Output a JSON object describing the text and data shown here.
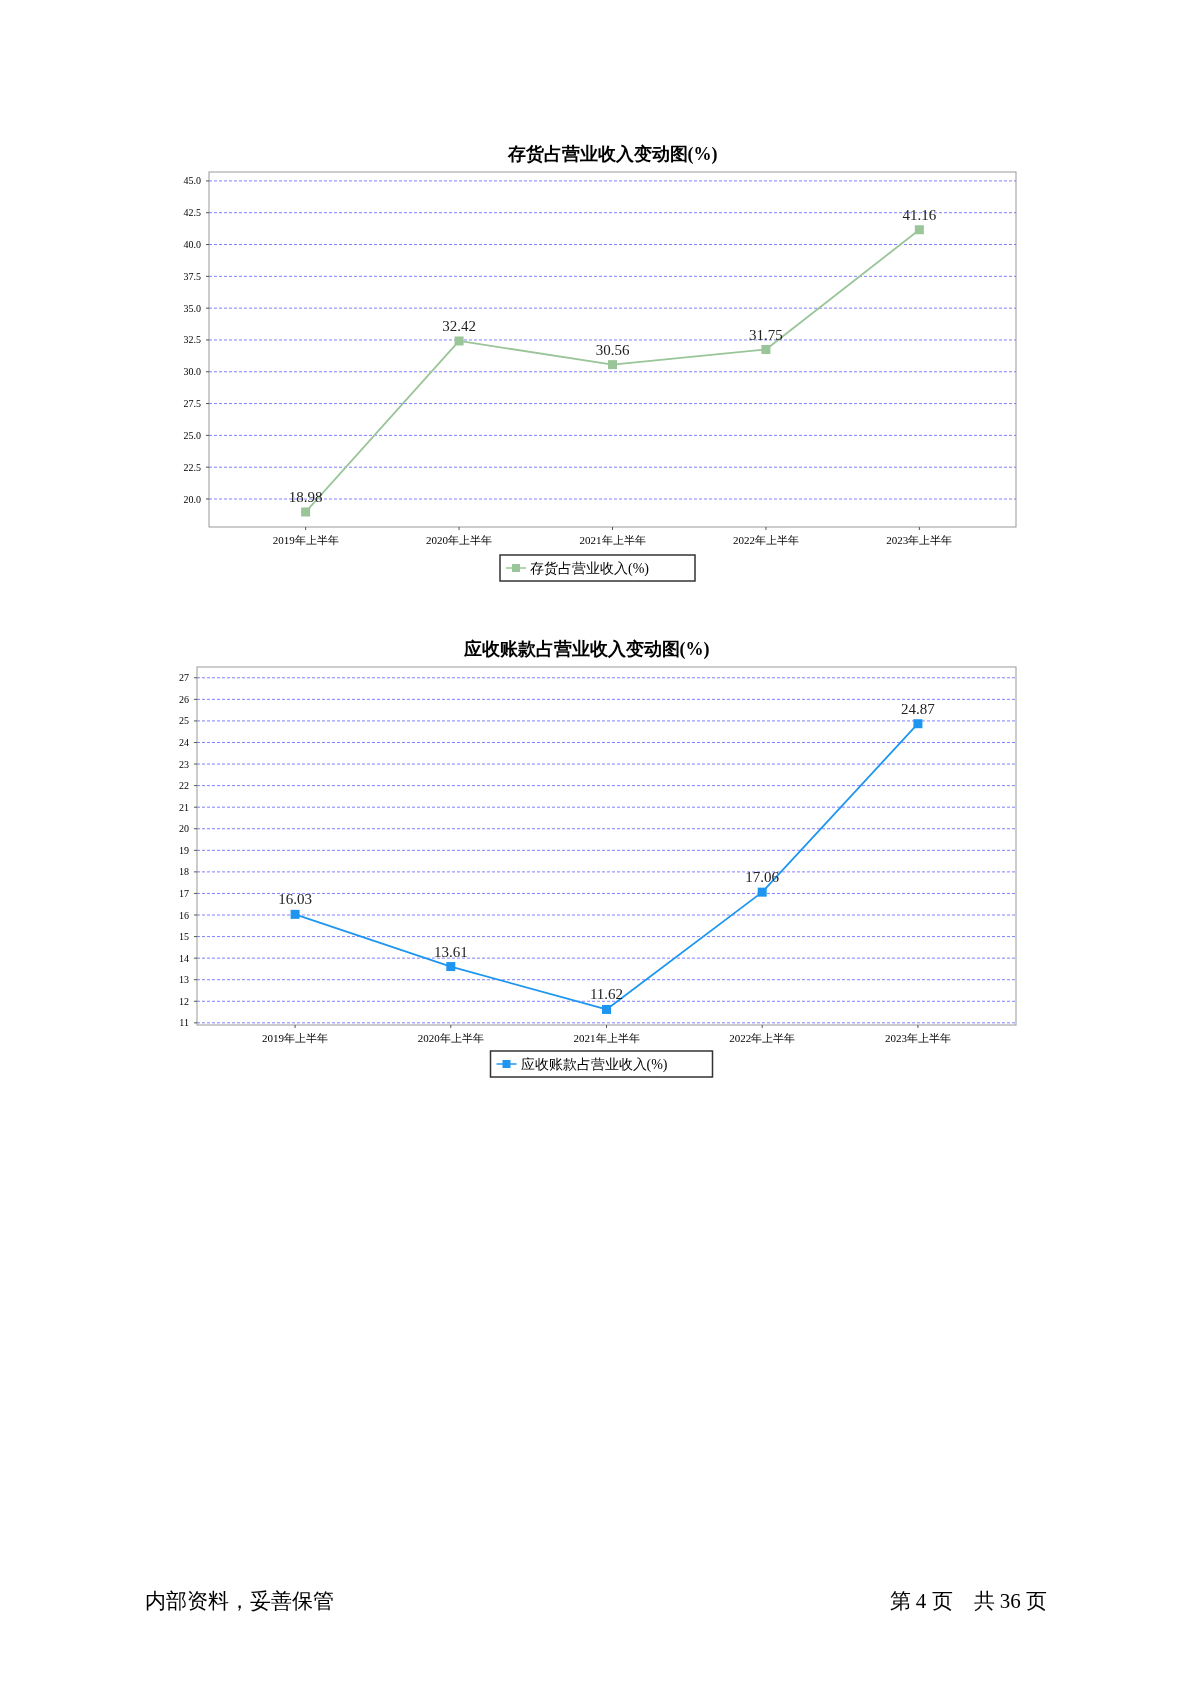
{
  "chart_data": [
    {
      "type": "line",
      "title": "存货占营业收入变动图(%)",
      "categories": [
        "2019年上半年",
        "2020年上半年",
        "2021年上半年",
        "2022年上半年",
        "2023年上半年"
      ],
      "series": [
        {
          "name": "存货占营业收入(%)",
          "color": "#99c599",
          "values": [
            18.98,
            32.42,
            30.56,
            31.75,
            41.16
          ]
        }
      ],
      "ylim": [
        17.8,
        45.7
      ],
      "yticks": [
        {
          "value": 20,
          "label": "20.0"
        },
        {
          "value": 22.5,
          "label": "22.5"
        },
        {
          "value": 25,
          "label": "25.0"
        },
        {
          "value": 27.5,
          "label": "27.5"
        },
        {
          "value": 30,
          "label": "30.0"
        },
        {
          "value": 32.5,
          "label": "32.5"
        },
        {
          "value": 35,
          "label": "35.0"
        },
        {
          "value": 37.5,
          "label": "37.5"
        },
        {
          "value": 40,
          "label": "40.0"
        },
        {
          "value": 42.5,
          "label": "42.5"
        },
        {
          "value": 45,
          "label": "45.0"
        }
      ],
      "grid": "y",
      "legend": "bottom",
      "marker": "square",
      "data_labels": true
    },
    {
      "type": "line",
      "title": "应收账款占营业收入变动图(%)",
      "categories": [
        "2019年上半年",
        "2020年上半年",
        "2021年上半年",
        "2022年上半年",
        "2023年上半年"
      ],
      "series": [
        {
          "name": "应收账款占营业收入(%)",
          "color": "#1e96f0",
          "values": [
            16.03,
            13.61,
            11.62,
            17.06,
            24.87
          ]
        }
      ],
      "ylim": [
        10.9,
        27.5
      ],
      "yticks": [
        11,
        12,
        13,
        14,
        15,
        16,
        17,
        18,
        19,
        20,
        21,
        22,
        23,
        24,
        25,
        26,
        27
      ],
      "grid": "y",
      "legend": "bottom",
      "marker": "square",
      "data_labels": true,
      "annotations": [
        "内部资料，妥善保管",
        "第 4 页　共 36 页"
      ]
    }
  ]
}
